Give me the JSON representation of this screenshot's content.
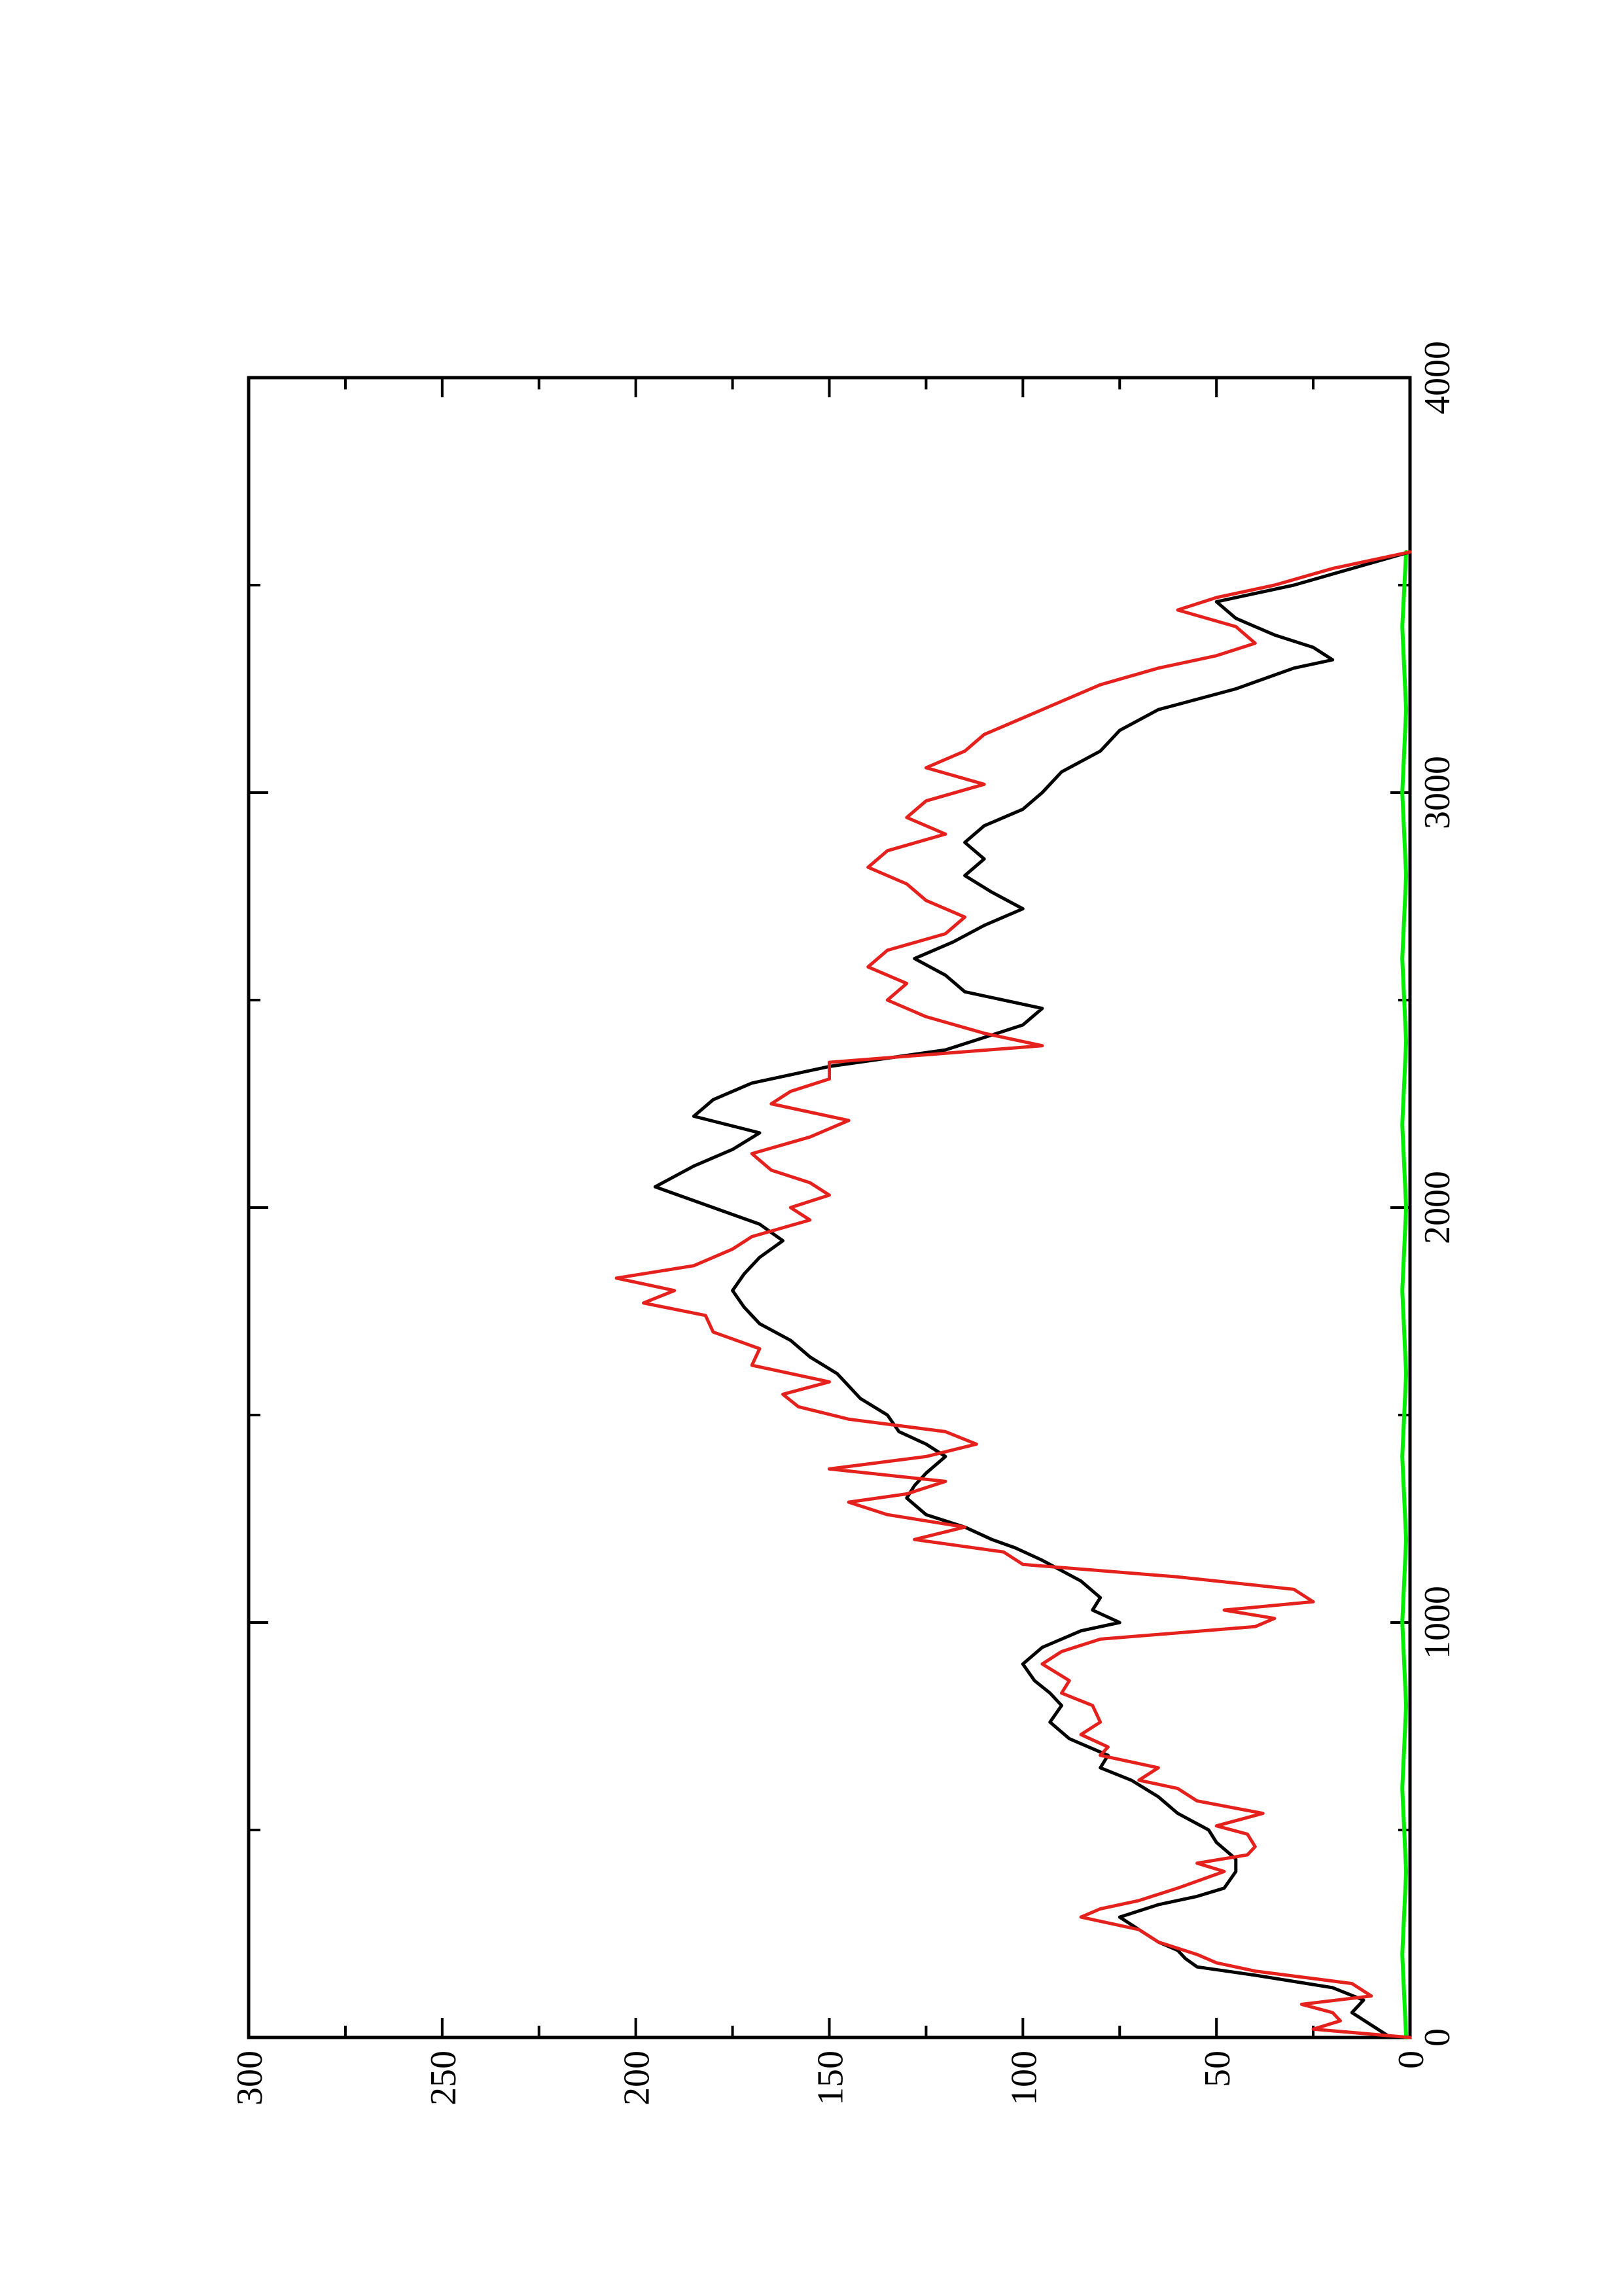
{
  "chart_data": {
    "type": "line",
    "orientation": "rotated-90-ccw",
    "title": "",
    "xlabel": "",
    "ylabel": "",
    "xlim": [
      0,
      4000
    ],
    "ylim": [
      0,
      300
    ],
    "x_ticks": [
      "0",
      "1000",
      "2000",
      "3000",
      "4000"
    ],
    "y_ticks": [
      "0",
      "50",
      "100",
      "150",
      "200",
      "250",
      "300"
    ],
    "grid": false,
    "legend": "none",
    "series": [
      {
        "color": "#000000",
        "x": [
          0,
          30,
          60,
          90,
          120,
          150,
          170,
          190,
          210,
          230,
          260,
          290,
          320,
          340,
          360,
          400,
          430,
          470,
          500,
          540,
          580,
          620,
          650,
          680,
          720,
          760,
          800,
          830,
          860,
          900,
          940,
          980,
          1000,
          1030,
          1060,
          1100,
          1150,
          1180,
          1200,
          1230,
          1260,
          1300,
          1330,
          1360,
          1400,
          1430,
          1460,
          1500,
          1540,
          1570,
          1600,
          1640,
          1680,
          1720,
          1760,
          1800,
          1840,
          1880,
          1920,
          1960,
          2000,
          2050,
          2100,
          2140,
          2180,
          2220,
          2260,
          2300,
          2340,
          2380,
          2410,
          2440,
          2480,
          2520,
          2560,
          2600,
          2640,
          2680,
          2720,
          2760,
          2800,
          2840,
          2880,
          2920,
          2960,
          3000,
          3050,
          3100,
          3150,
          3200,
          3250,
          3300,
          3320,
          3350,
          3380,
          3420,
          3460,
          3500,
          3540,
          3580
        ],
        "y": [
          5,
          10,
          15,
          12,
          20,
          40,
          55,
          58,
          60,
          65,
          70,
          75,
          65,
          55,
          48,
          45,
          45,
          50,
          52,
          60,
          65,
          72,
          80,
          78,
          88,
          93,
          90,
          93,
          97,
          100,
          95,
          85,
          75,
          82,
          80,
          85,
          95,
          102,
          108,
          115,
          125,
          130,
          128,
          125,
          120,
          125,
          132,
          135,
          142,
          145,
          148,
          155,
          160,
          168,
          172,
          175,
          172,
          168,
          162,
          168,
          180,
          195,
          185,
          175,
          168,
          185,
          180,
          170,
          150,
          120,
          110,
          100,
          95,
          115,
          120,
          128,
          118,
          110,
          100,
          108,
          115,
          110,
          115,
          110,
          100,
          95,
          90,
          80,
          75,
          65,
          45,
          30,
          20,
          25,
          35,
          45,
          50,
          30,
          15,
          0
        ]
      },
      {
        "color": "#e4211c",
        "x": [
          0,
          20,
          40,
          60,
          80,
          100,
          130,
          160,
          180,
          200,
          230,
          260,
          290,
          310,
          330,
          360,
          400,
          420,
          440,
          460,
          490,
          510,
          540,
          570,
          600,
          620,
          650,
          680,
          700,
          730,
          760,
          800,
          830,
          860,
          900,
          930,
          960,
          990,
          1010,
          1030,
          1050,
          1080,
          1110,
          1140,
          1170,
          1200,
          1230,
          1260,
          1290,
          1310,
          1340,
          1370,
          1400,
          1430,
          1460,
          1490,
          1520,
          1550,
          1580,
          1620,
          1660,
          1700,
          1740,
          1770,
          1800,
          1830,
          1860,
          1900,
          1930,
          1970,
          2000,
          2030,
          2060,
          2090,
          2130,
          2170,
          2210,
          2250,
          2280,
          2310,
          2350,
          2390,
          2420,
          2460,
          2500,
          2540,
          2580,
          2620,
          2660,
          2700,
          2740,
          2780,
          2820,
          2860,
          2900,
          2940,
          2980,
          3020,
          3060,
          3100,
          3140,
          3180,
          3220,
          3260,
          3300,
          3330,
          3360,
          3400,
          3440,
          3470,
          3500,
          3540,
          3580
        ],
        "y": [
          0,
          25,
          18,
          20,
          28,
          10,
          15,
          40,
          50,
          55,
          65,
          70,
          85,
          80,
          70,
          60,
          48,
          55,
          42,
          40,
          42,
          50,
          38,
          55,
          60,
          70,
          65,
          80,
          78,
          85,
          80,
          82,
          90,
          88,
          95,
          90,
          80,
          40,
          35,
          48,
          25,
          30,
          60,
          100,
          105,
          128,
          115,
          135,
          145,
          130,
          120,
          150,
          125,
          112,
          120,
          145,
          158,
          162,
          150,
          170,
          168,
          180,
          182,
          198,
          190,
          205,
          185,
          175,
          170,
          155,
          160,
          150,
          155,
          165,
          170,
          155,
          145,
          165,
          160,
          150,
          150,
          95,
          110,
          125,
          135,
          130,
          140,
          135,
          120,
          115,
          125,
          130,
          140,
          135,
          120,
          130,
          125,
          110,
          125,
          115,
          110,
          100,
          90,
          80,
          65,
          50,
          40,
          45,
          60,
          50,
          35,
          20,
          0
        ]
      },
      {
        "color": "#00ee00",
        "x": [
          0,
          200,
          400,
          600,
          800,
          1000,
          1200,
          1400,
          1600,
          1800,
          2000,
          2200,
          2400,
          2600,
          2800,
          3000,
          3200,
          3400,
          3580
        ],
        "y": [
          1,
          2,
          1,
          2,
          1,
          2,
          1,
          2,
          1,
          2,
          1,
          2,
          1,
          2,
          1,
          2,
          1,
          2,
          1
        ]
      }
    ]
  }
}
